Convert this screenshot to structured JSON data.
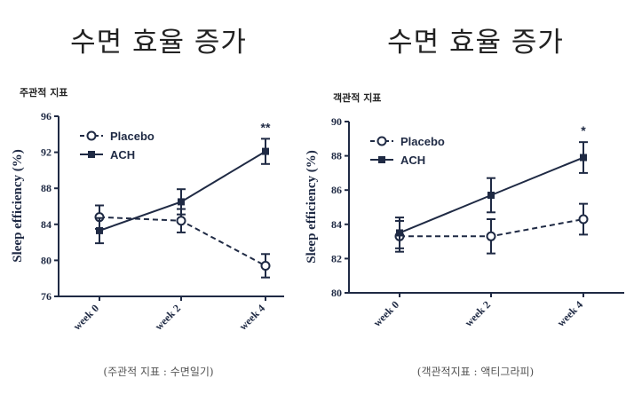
{
  "panels": [
    {
      "title": "수면 효율 증가",
      "sublabel": "주관적 지표",
      "caption": "(주관적 지표 : 수면일기)"
    },
    {
      "title": "수면 효율 증가",
      "sublabel": "객관적 지표",
      "caption": "(객관적지표 : 액티그라피)"
    }
  ],
  "chart_data": [
    {
      "type": "line",
      "title": "",
      "xlabel": "",
      "ylabel": "Sleep efficiency (%)",
      "categories": [
        "week 0",
        "week 2",
        "week 4"
      ],
      "ylim": [
        76,
        96
      ],
      "yticks": [
        "76",
        "80",
        "84",
        "88",
        "92",
        "96"
      ],
      "legend_position": "top-left",
      "series": [
        {
          "name": "Placebo",
          "values": [
            84.8,
            84.4,
            79.4
          ],
          "errors": [
            1.3,
            1.3,
            1.3
          ],
          "style": "dashed",
          "marker": "open-circle"
        },
        {
          "name": "ACH",
          "values": [
            83.3,
            86.5,
            92.1
          ],
          "errors": [
            1.4,
            1.4,
            1.4
          ],
          "style": "solid",
          "marker": "filled-square"
        }
      ],
      "annotations": [
        {
          "category": "week 4",
          "text": "**"
        }
      ]
    },
    {
      "type": "line",
      "title": "",
      "xlabel": "",
      "ylabel": "Sleep efficiency (%)",
      "categories": [
        "week 0",
        "week 2",
        "week 4"
      ],
      "ylim": [
        80,
        90
      ],
      "yticks": [
        "80",
        "82",
        "84",
        "86",
        "88",
        "90"
      ],
      "legend_position": "top-left",
      "series": [
        {
          "name": "Placebo",
          "values": [
            83.3,
            83.3,
            84.3
          ],
          "errors": [
            0.9,
            1.0,
            0.9
          ],
          "style": "dashed",
          "marker": "open-circle"
        },
        {
          "name": "ACH",
          "values": [
            83.5,
            85.7,
            87.9
          ],
          "errors": [
            0.9,
            1.0,
            0.9
          ],
          "style": "solid",
          "marker": "filled-square"
        }
      ],
      "annotations": [
        {
          "category": "week 4",
          "text": "*"
        }
      ]
    }
  ]
}
